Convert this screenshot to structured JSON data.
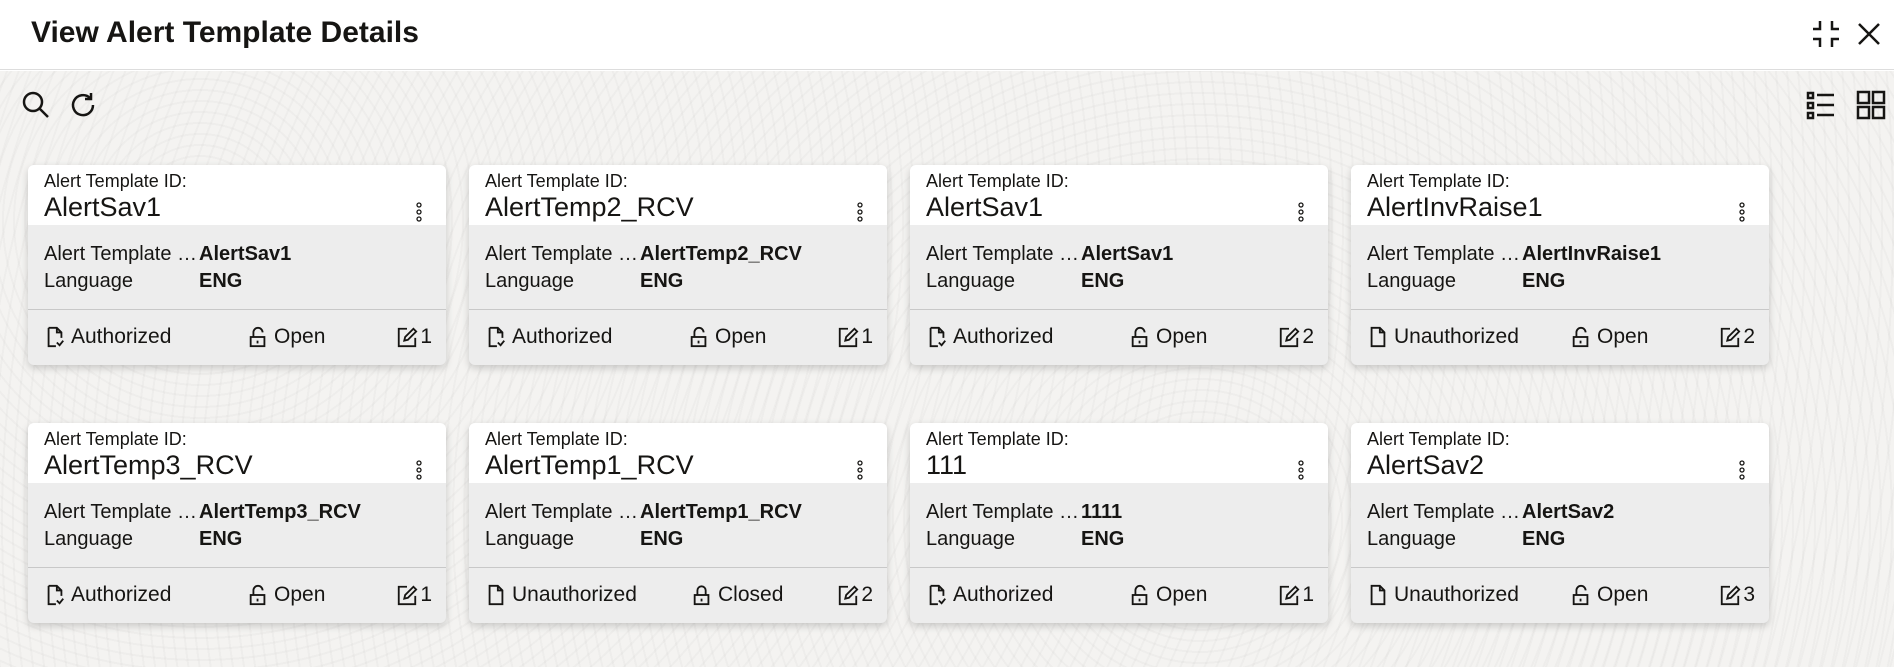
{
  "header": {
    "title": "View Alert Template Details"
  },
  "labels": {
    "id_label": "Alert Template ID:",
    "name_label": "Alert Template Name",
    "language_label": "Language"
  },
  "cards": [
    {
      "id": "AlertSav1",
      "name": "AlertSav1",
      "language": "ENG",
      "status": "Authorized",
      "lock": "Open",
      "version": "1"
    },
    {
      "id": "AlertTemp2_RCV",
      "name": "AlertTemp2_RCV",
      "language": "ENG",
      "status": "Authorized",
      "lock": "Open",
      "version": "1"
    },
    {
      "id": "AlertSav1",
      "name": "AlertSav1",
      "language": "ENG",
      "status": "Authorized",
      "lock": "Open",
      "version": "2"
    },
    {
      "id": "AlertInvRaise1",
      "name": "AlertInvRaise1",
      "language": "ENG",
      "status": "Unauthorized",
      "lock": "Open",
      "version": "2"
    },
    {
      "id": "AlertTemp3_RCV",
      "name": "AlertTemp3_RCV",
      "language": "ENG",
      "status": "Authorized",
      "lock": "Open",
      "version": "1"
    },
    {
      "id": "AlertTemp1_RCV",
      "name": "AlertTemp1_RCV",
      "language": "ENG",
      "status": "Unauthorized",
      "lock": "Closed",
      "version": "2"
    },
    {
      "id": "111",
      "name": "1111",
      "language": "ENG",
      "status": "Authorized",
      "lock": "Open",
      "version": "1"
    },
    {
      "id": "AlertSav2",
      "name": "AlertSav2",
      "language": "ENG",
      "status": "Unauthorized",
      "lock": "Open",
      "version": "3"
    }
  ]
}
